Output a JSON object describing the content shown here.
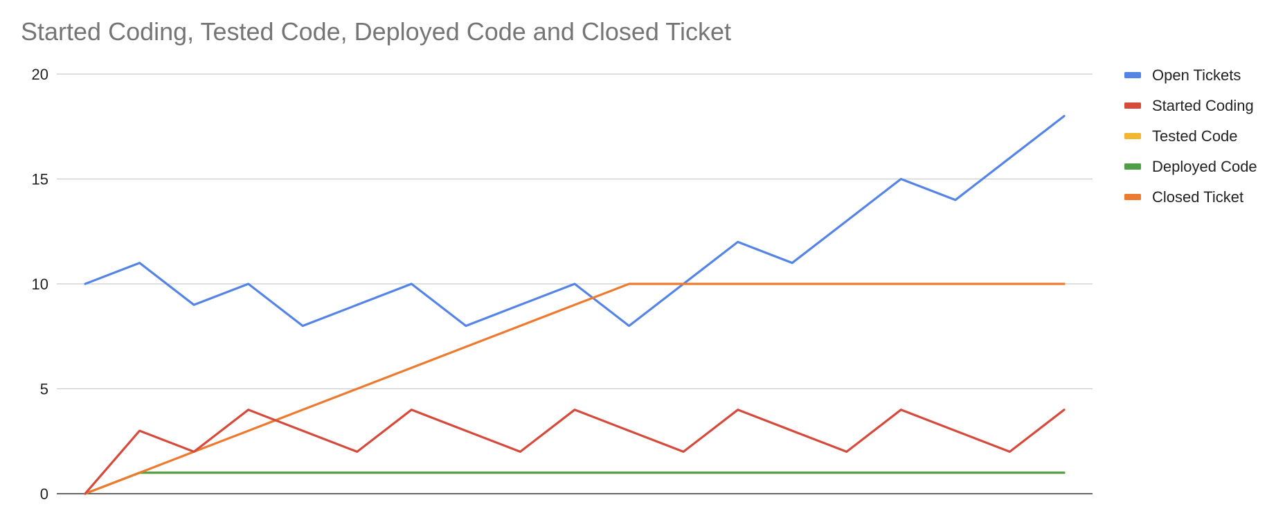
{
  "chart_data": {
    "type": "line",
    "title": "Started Coding, Tested Code, Deployed Code and Closed Ticket",
    "xlabel": "",
    "ylabel": "",
    "ylim": [
      0,
      20
    ],
    "yticks": [
      "0",
      "5",
      "10",
      "15",
      "20"
    ],
    "grid": true,
    "legend_position": "right",
    "x": [
      1,
      2,
      3,
      4,
      5,
      6,
      7,
      8,
      9,
      10,
      11,
      12,
      13,
      14,
      15,
      16,
      17,
      18,
      19
    ],
    "series": [
      {
        "name": "Open Tickets",
        "color": "#5384e6",
        "values": [
          10,
          11,
          9,
          10,
          8,
          9,
          10,
          8,
          9,
          10,
          8,
          10,
          12,
          11,
          13,
          15,
          14,
          16,
          18
        ]
      },
      {
        "name": "Started Coding",
        "color": "#d64a3b",
        "values": [
          0,
          3,
          2,
          4,
          3,
          2,
          4,
          3,
          2,
          4,
          3,
          2,
          4,
          3,
          2,
          4,
          3,
          2,
          4
        ]
      },
      {
        "name": "Tested Code",
        "color": "#f2b731",
        "values": [
          0,
          1,
          1,
          1,
          1,
          1,
          1,
          1,
          1,
          1,
          1,
          1,
          1,
          1,
          1,
          1,
          1,
          1,
          1
        ]
      },
      {
        "name": "Deployed Code",
        "color": "#4e9f45",
        "values": [
          0,
          1,
          1,
          1,
          1,
          1,
          1,
          1,
          1,
          1,
          1,
          1,
          1,
          1,
          1,
          1,
          1,
          1,
          1
        ]
      },
      {
        "name": "Closed Ticket",
        "color": "#ec7a2f",
        "values": [
          0,
          1,
          2,
          3,
          4,
          5,
          6,
          7,
          8,
          9,
          10,
          10,
          10,
          10,
          10,
          10,
          10,
          10,
          10
        ]
      }
    ]
  }
}
